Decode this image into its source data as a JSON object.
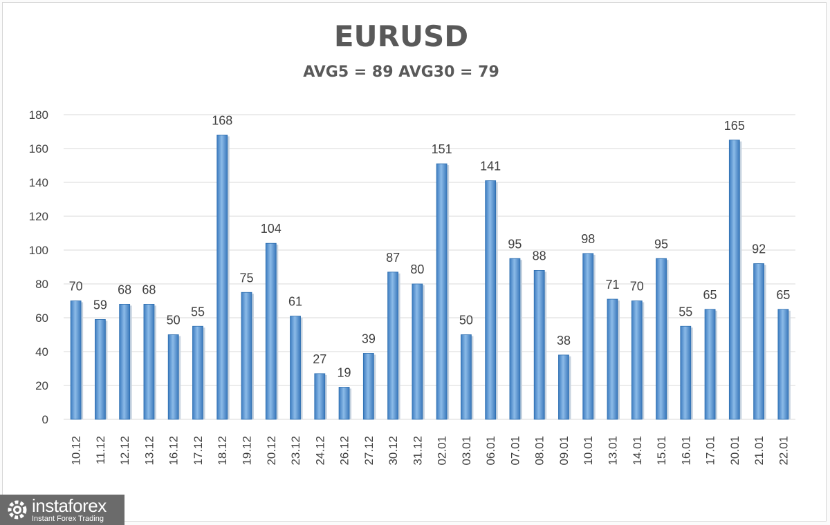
{
  "chart_data": {
    "type": "bar",
    "title": "EURUSD",
    "subtitle": "AVG5 = 89 AVG30 = 79",
    "categories": [
      "10.12",
      "11.12",
      "12.12",
      "13.12",
      "16.12",
      "17.12",
      "18.12",
      "19.12",
      "20.12",
      "23.12",
      "24.12",
      "26.12",
      "27.12",
      "30.12",
      "31.12",
      "02.01",
      "03.01",
      "06.01",
      "07.01",
      "08.01",
      "09.01",
      "10.01",
      "13.01",
      "14.01",
      "15.01",
      "16.01",
      "17.01",
      "20.01",
      "21.01",
      "22.01"
    ],
    "values": [
      70,
      59,
      68,
      68,
      50,
      55,
      168,
      75,
      104,
      61,
      27,
      19,
      39,
      87,
      80,
      151,
      50,
      141,
      95,
      88,
      38,
      98,
      71,
      70,
      95,
      55,
      65,
      165,
      92,
      65
    ],
    "ylim": [
      0,
      180
    ],
    "yticks": [
      0,
      20,
      40,
      60,
      80,
      100,
      120,
      140,
      160,
      180
    ],
    "grid": true,
    "legend": "none",
    "bar_color": "#5b9bd5",
    "bar_color_dark": "#2e6fb0"
  },
  "logo": {
    "name": "instaforex",
    "tagline": "Instant Forex Trading"
  }
}
